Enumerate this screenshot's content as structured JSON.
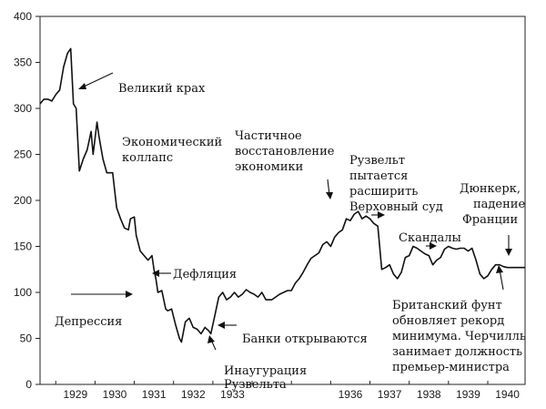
{
  "chart_data": {
    "type": "line",
    "ylim": [
      0,
      400
    ],
    "xlim": [
      1928.6,
      1940.95
    ],
    "y_ticks": [
      0,
      50,
      100,
      150,
      200,
      250,
      300,
      350,
      400
    ],
    "x_tick_labels": [
      {
        "year": 1929,
        "label": "1929"
      },
      {
        "year": 1930,
        "label": "1930"
      },
      {
        "year": 1931,
        "label": "1931"
      },
      {
        "year": 1932,
        "label": "1932"
      },
      {
        "year": 1933,
        "label": "1933"
      },
      {
        "year": 1936,
        "label": "1936"
      },
      {
        "year": 1937,
        "label": "1937"
      },
      {
        "year": 1938,
        "label": "1938"
      },
      {
        "year": 1939,
        "label": "1939"
      },
      {
        "year": 1940,
        "label": "1940"
      }
    ],
    "grid": false,
    "series": [
      {
        "x": [
          1928.6,
          1928.7,
          1928.8,
          1928.9,
          1929.0,
          1929.1,
          1929.2,
          1929.3,
          1929.38,
          1929.45,
          1929.52,
          1929.6,
          1929.7,
          1929.8,
          1929.9,
          1929.95,
          1930.05,
          1930.1,
          1930.2,
          1930.3,
          1930.4,
          1930.45,
          1930.55,
          1930.65,
          1930.75,
          1930.85,
          1930.9,
          1931.0,
          1931.05,
          1931.15,
          1931.25,
          1931.35,
          1931.45,
          1931.5,
          1931.55,
          1931.6,
          1931.7,
          1931.8,
          1931.85,
          1931.95,
          1932.05,
          1932.15,
          1932.2,
          1932.3,
          1932.4,
          1932.5,
          1932.6,
          1932.7,
          1932.8,
          1932.9,
          1932.95,
          1933.05,
          1933.15,
          1933.25,
          1933.35,
          1933.45,
          1933.55,
          1933.65,
          1933.75,
          1933.85,
          1933.95,
          1934.05,
          1934.15,
          1934.25,
          1934.35,
          1934.5,
          1934.6,
          1934.7,
          1934.8,
          1934.9,
          1935.0,
          1935.1,
          1935.2,
          1935.3,
          1935.4,
          1935.5,
          1935.6,
          1935.7,
          1935.8,
          1935.9,
          1936.0,
          1936.1,
          1936.2,
          1936.3,
          1936.4,
          1936.5,
          1936.6,
          1936.7,
          1936.8,
          1936.9,
          1937.0,
          1937.1,
          1937.2,
          1937.3,
          1937.4,
          1937.5,
          1937.6,
          1937.7,
          1937.8,
          1937.9,
          1938.0,
          1938.1,
          1938.2,
          1938.3,
          1938.4,
          1938.5,
          1938.6,
          1938.7,
          1938.8,
          1938.9,
          1939.0,
          1939.1,
          1939.2,
          1939.3,
          1939.4,
          1939.5,
          1939.6,
          1939.7,
          1939.8,
          1939.9,
          1940.0,
          1940.1,
          1940.2,
          1940.3,
          1940.4,
          1940.5,
          1940.6,
          1940.7,
          1940.8,
          1940.9,
          1940.95
        ],
        "y": [
          305,
          310,
          310,
          308,
          315,
          320,
          345,
          360,
          365,
          305,
          300,
          232,
          245,
          255,
          275,
          250,
          285,
          270,
          245,
          230,
          230,
          230,
          192,
          180,
          170,
          168,
          180,
          182,
          162,
          145,
          140,
          135,
          140,
          125,
          115,
          100,
          102,
          82,
          80,
          82,
          65,
          50,
          46,
          68,
          72,
          62,
          60,
          55,
          62,
          58,
          55,
          75,
          95,
          100,
          92,
          95,
          100,
          95,
          98,
          103,
          100,
          98,
          95,
          100,
          92,
          92,
          95,
          98,
          100,
          102,
          102,
          110,
          115,
          122,
          130,
          137,
          140,
          143,
          152,
          155,
          150,
          160,
          165,
          168,
          180,
          178,
          185,
          188,
          180,
          183,
          180,
          175,
          172,
          125,
          127,
          130,
          120,
          115,
          122,
          138,
          140,
          150,
          148,
          145,
          142,
          140,
          130,
          135,
          138,
          147,
          150,
          148,
          147,
          148,
          148,
          145,
          148,
          135,
          120,
          115,
          118,
          125,
          130,
          130,
          128,
          127,
          127,
          127,
          127,
          127,
          127
        ]
      }
    ],
    "annotations": {
      "velikiy_krakh": "Великий крах",
      "ekonomicheskiy": "Экономический",
      "kollaps": "коллапс",
      "deflyatsiya": "Дефляция",
      "depressiya": "Депрессия",
      "chastichnoe": "Частичное",
      "vosstanovlenie": "восстановление",
      "ekonomiki": "экономики",
      "banki": "Банки открываются",
      "inauguratsiya": "Инаугурация",
      "ruzvelta": "Рузвельта",
      "ruzvelt": "Рузвельт",
      "pytaetsya": "пытается",
      "rasshirit": "расширить",
      "verkhovnyy": "Верховный суд",
      "skandaly": "Скандалы",
      "dyunkerk": "Дюнкерк,",
      "padenie": "падение",
      "frantsii": "Франции",
      "britanskiy": "Британский фунт",
      "obnovlyaet": "обновляет рекорд",
      "minimuma": "минимума. Черчилль",
      "zanimaet": "занимает должность",
      "premer": "премьер-министра"
    }
  }
}
